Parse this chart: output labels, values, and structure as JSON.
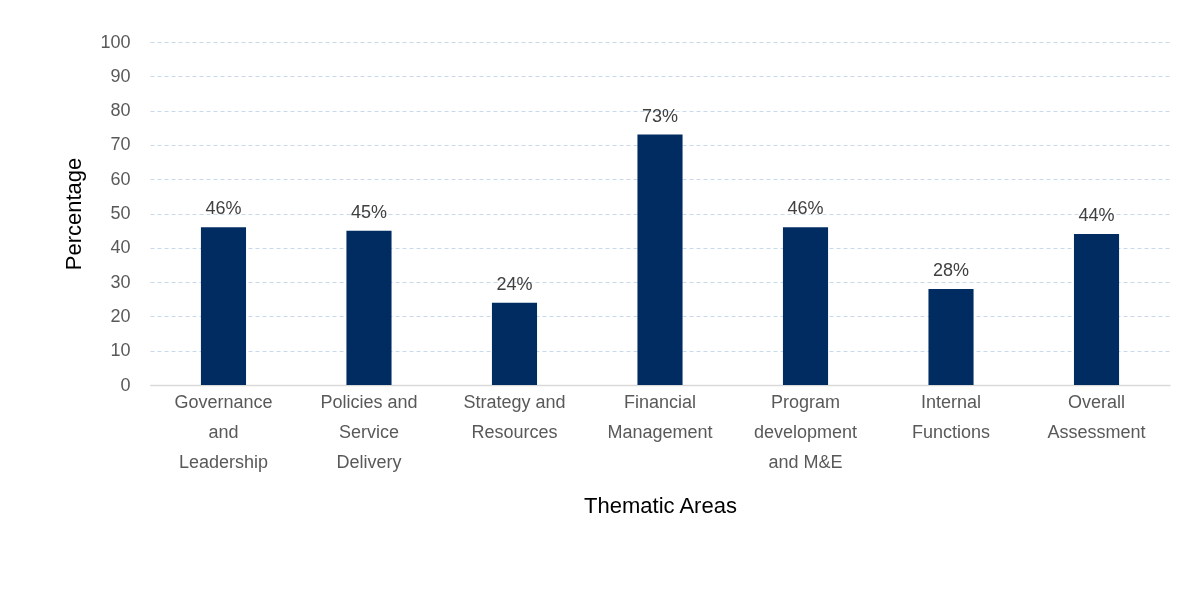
{
  "chart_data": {
    "type": "bar",
    "xlabel": "Thematic Areas",
    "ylabel": "Percentage",
    "categories": [
      "Governance and Leadership",
      "Policies and Service Delivery",
      "Strategy and Resources",
      "Financial Management",
      "Program development and M&E",
      "Internal Functions",
      "Overall Assessment"
    ],
    "values": [
      46,
      45,
      24,
      73,
      46,
      28,
      44
    ],
    "value_labels": [
      "46%",
      "45%",
      "24%",
      "73%",
      "46%",
      "28%",
      "44%"
    ],
    "color": "#002c62",
    "ylim": [
      0,
      100
    ],
    "yticks": [
      0,
      10,
      20,
      30,
      40,
      50,
      60,
      70,
      80,
      90,
      100
    ],
    "grid": "y"
  }
}
